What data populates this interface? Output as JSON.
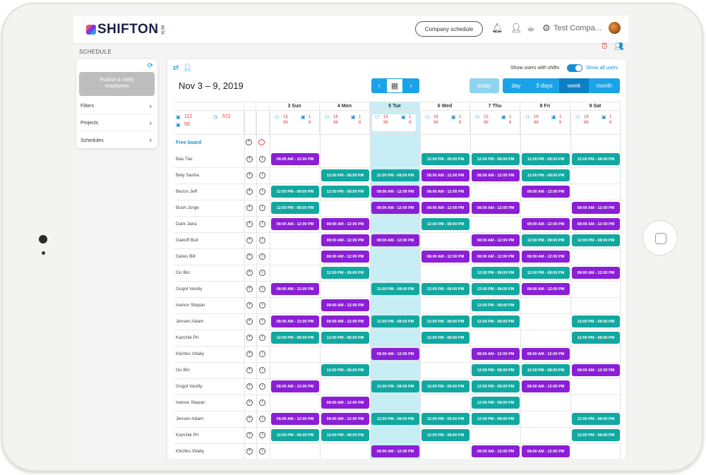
{
  "app": {
    "logo_text": "SHIFTON",
    "logo_badge": "BETA",
    "company_schedule": "Company schedule",
    "account_name": "Test Compa..."
  },
  "section_label": "SCHEDULE",
  "sidebar": {
    "publish_label": "Publish & notify employees",
    "items": [
      {
        "label": "Filters"
      },
      {
        "label": "Projects"
      },
      {
        "label": "Schedules"
      }
    ]
  },
  "toolbar": {
    "show_users_label": "Show users with shifts",
    "show_all_label": "Show all users",
    "date_range": "Nov 3 – 9, 2019",
    "prev": "‹",
    "next": "›",
    "views": [
      {
        "label": "today"
      },
      {
        "label": "day"
      },
      {
        "label": "3 days"
      },
      {
        "label": "week"
      },
      {
        "label": "month"
      }
    ]
  },
  "days": [
    "3 Sun",
    "4 Mon",
    "5 Tue",
    "6 Wed",
    "7 Thu",
    "8 Fri",
    "9 Sat"
  ],
  "summary": {
    "hours": "112",
    "time": "572",
    "people": "56"
  },
  "day_stats": {
    "a": "16",
    "b": "1",
    "c": "96",
    "d": "8"
  },
  "free_board_label": "Free board",
  "shift_labels": {
    "p": "08:00 AM - 12:00 PM",
    "t": "12:00 PM - 08:00 PM"
  },
  "employees": [
    {
      "name": "Bas Tiar",
      "shifts": [
        "p",
        "",
        "",
        "t",
        "t",
        "t",
        "t"
      ]
    },
    {
      "name": "Bely Sasha",
      "shifts": [
        "",
        "t",
        "t",
        "p",
        "p",
        "t",
        ""
      ]
    },
    {
      "name": "Bezos Jeff",
      "shifts": [
        "t",
        "t",
        "p",
        "p",
        "",
        "p",
        ""
      ]
    },
    {
      "name": "Bush Jorge",
      "shifts": [
        "t",
        "",
        "p",
        "p",
        "p",
        "",
        "p"
      ]
    },
    {
      "name": "Dark Jaira",
      "shifts": [
        "p",
        "p",
        "",
        "t",
        "",
        "p",
        "p"
      ]
    },
    {
      "name": "Gakoff Bull",
      "shifts": [
        "",
        "p",
        "p",
        "",
        "p",
        "t",
        "t"
      ]
    },
    {
      "name": "Gates Bill",
      "shifts": [
        "",
        "p",
        "",
        "p",
        "p",
        "p",
        ""
      ]
    },
    {
      "name": "Go Bin",
      "shifts": [
        "",
        "t",
        "",
        "",
        "t",
        "t",
        "p"
      ]
    },
    {
      "name": "Gogol Vasiliy",
      "shifts": [
        "p",
        "",
        "t",
        "t",
        "t",
        "p",
        ""
      ]
    },
    {
      "name": "Ivanov Stepan",
      "shifts": [
        "",
        "p",
        "",
        "",
        "t",
        "",
        ""
      ]
    },
    {
      "name": "Jensen Adam",
      "shifts": [
        "p",
        "p",
        "t",
        "t",
        "t",
        "",
        "t"
      ]
    },
    {
      "name": "Kazchik Pri",
      "shifts": [
        "t",
        "t",
        "",
        "t",
        "",
        "",
        "t"
      ]
    },
    {
      "name": "Klichko Vitaliy",
      "shifts": [
        "",
        "",
        "p",
        "",
        "p",
        "p",
        ""
      ]
    },
    {
      "name": "Go Bin",
      "shifts": [
        "",
        "t",
        "",
        "",
        "t",
        "t",
        "p"
      ]
    },
    {
      "name": "Gogol Vasiliy",
      "shifts": [
        "p",
        "",
        "t",
        "t",
        "t",
        "p",
        ""
      ]
    },
    {
      "name": "Ivanov Stepan",
      "shifts": [
        "",
        "p",
        "",
        "",
        "t",
        "",
        ""
      ]
    },
    {
      "name": "Jensen Adam",
      "shifts": [
        "p",
        "p",
        "t",
        "t",
        "t",
        "",
        "t"
      ]
    },
    {
      "name": "Kazchik Pri",
      "shifts": [
        "t",
        "t",
        "",
        "t",
        "",
        "",
        "t"
      ]
    },
    {
      "name": "Klichko Vitaliy",
      "shifts": [
        "",
        "",
        "p",
        "",
        "p",
        "p",
        ""
      ]
    }
  ],
  "colors": {
    "accent": "#1aa3e8",
    "shift_purple": "#8b1fd6",
    "shift_teal": "#12a8a0",
    "highlight_day": "#c6eef4",
    "active_view": "#0c7fc6"
  }
}
